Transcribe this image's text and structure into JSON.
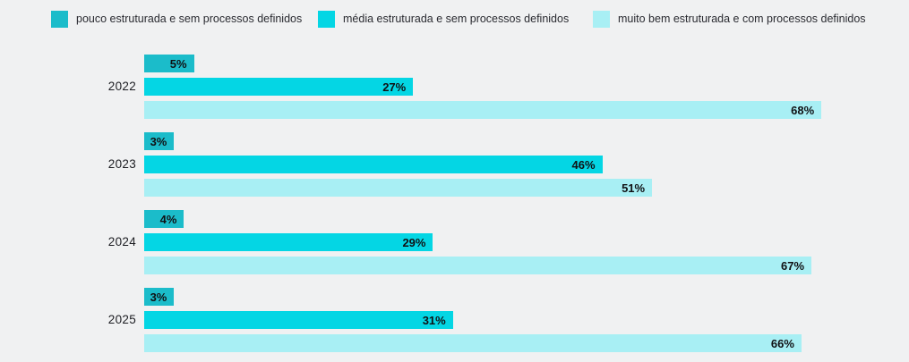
{
  "colors": {
    "background": "#f0f1f2",
    "series_poorly_structured": "#1bbcca",
    "series_medium_structured": "#04d6e4",
    "series_well_structured": "#a8eff4",
    "value_label_text": "#101114",
    "year_label_text": "#1c1d22",
    "legend_text": "#2a2b31"
  },
  "legend": {
    "items": [
      {
        "label": "pouco estruturada e sem processos definidos"
      },
      {
        "label": "média estruturada e sem processos definidos"
      },
      {
        "label": "muito bem estruturada e com processos definidos"
      }
    ]
  },
  "chart_data": {
    "type": "bar",
    "orientation": "horizontal",
    "title": "",
    "xlabel": "",
    "ylabel": "",
    "xlim": [
      0,
      76
    ],
    "grid": false,
    "legend_position": "top",
    "value_suffix": "%",
    "value_labels": "inside-end",
    "categories": [
      "2022",
      "2023",
      "2024",
      "2025"
    ],
    "series": [
      {
        "name": "pouco estruturada e sem processos definidos",
        "color": "#1bbcca",
        "values": [
          5,
          3,
          4,
          3
        ]
      },
      {
        "name": "média estruturada e sem processos definidos",
        "color": "#04d6e4",
        "values": [
          27,
          46,
          29,
          31
        ]
      },
      {
        "name": "muito bem estruturada e com processos definidos",
        "color": "#a8eff4",
        "values": [
          68,
          51,
          67,
          66
        ]
      }
    ]
  }
}
